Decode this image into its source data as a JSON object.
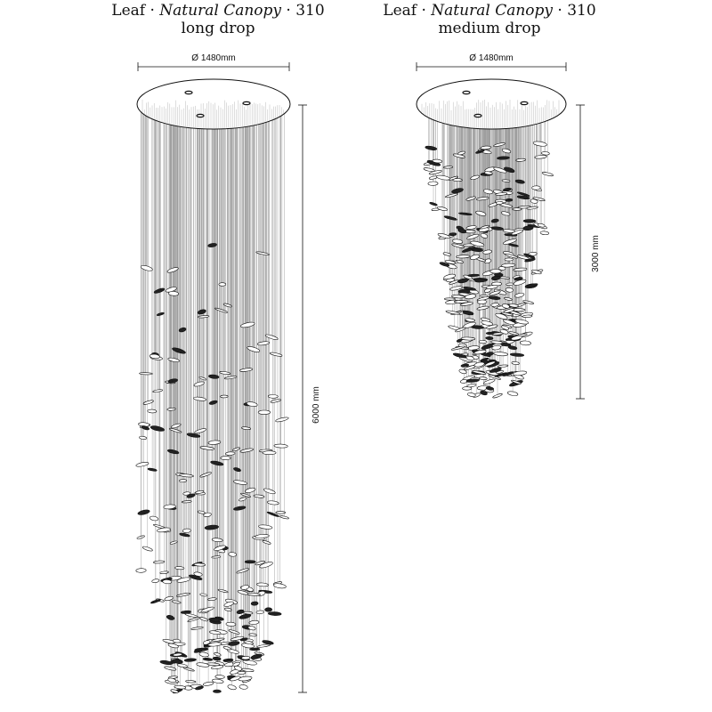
{
  "long_drop": {
    "title_prefix": "Leaf · ",
    "title_italic": "Natural Canopy",
    "title_suffix": " · 310",
    "subtitle": "long drop",
    "diameter_label": "Ø 1480mm",
    "height_label": "6000 mm"
  },
  "medium_drop": {
    "title_prefix": "Leaf · ",
    "title_italic": "Natural Canopy",
    "title_suffix": "  · 310",
    "subtitle": "medium drop",
    "diameter_label": "Ø 1480mm",
    "height_label": "3000 mm"
  },
  "colors": {
    "line": "#111111",
    "wire": "#9a9a9a",
    "leaf_fill": "#ffffff"
  }
}
